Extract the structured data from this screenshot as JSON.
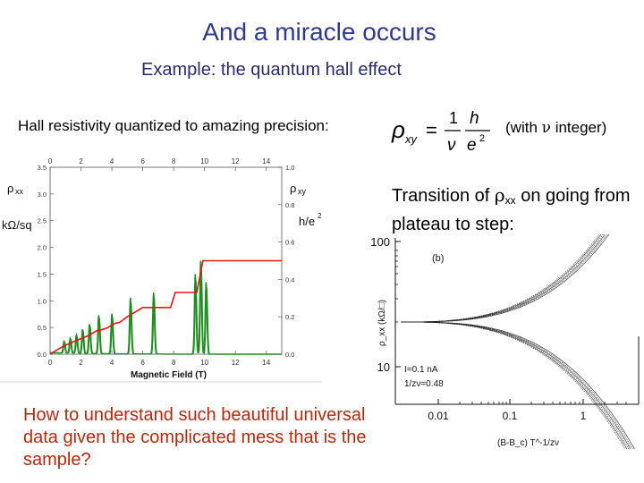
{
  "slide": {
    "title": "And a miracle occurs",
    "subtitle": "Example: the quantum hall effect",
    "hall_text": "Hall resistivity quantized to amazing precision:",
    "formula": {
      "lhs": "ρ",
      "lhs_sub": "xy",
      "equals": "=",
      "num1": "1",
      "den1": "ν",
      "num2": "h",
      "den2": "e",
      "den2_sup": "2"
    },
    "note_prefix": "(with ",
    "note_nu": "ν",
    "note_suffix": " integer)",
    "transition_prefix": "Transition of ",
    "transition_rho": "ρ",
    "transition_sub": "xx",
    "transition_suffix": " on going from plateau to step:",
    "question": "How to understand such beautiful universal data given the complicated mess that is the sample?"
  },
  "chart_data": [
    {
      "type": "line",
      "title": "",
      "xlabel": "Magnetic Field (T)",
      "x_ticks": [
        "0",
        "2",
        "4",
        "6",
        "8",
        "10",
        "12",
        "14"
      ],
      "xlim": [
        0,
        15
      ],
      "left_axis": {
        "label_top": "ρ",
        "label_top_sub": "xx",
        "label_unit": "kΩ/sq",
        "ticks": [
          "0.0",
          "0.5",
          "1.0",
          "1.5",
          "2.0",
          "2.5",
          "3.0",
          "3.5"
        ],
        "ylim": [
          0,
          3.5
        ]
      },
      "right_axis": {
        "label_top": "ρ",
        "label_top_sub": "xy",
        "label_unit": "h/e",
        "label_unit_sup": "2",
        "ticks": [
          "0.0",
          "0.2",
          "0.4",
          "0.6",
          "0.8",
          "1.0"
        ],
        "ylim": [
          0,
          1.0
        ]
      },
      "series": [
        {
          "name": "rho_xy",
          "color": "#e41414",
          "axis": "right",
          "x": [
            0,
            0.8,
            1.6,
            2.2,
            2.5,
            3.0,
            3.3,
            3.7,
            4.2,
            4.5,
            5.0,
            5.6,
            6.0,
            7.8,
            8.1,
            9.5,
            9.9,
            15.0
          ],
          "y": [
            0.0,
            0.04,
            0.07,
            0.09,
            0.1,
            0.125,
            0.13,
            0.14,
            0.165,
            0.17,
            0.2,
            0.23,
            0.25,
            0.25,
            0.33,
            0.33,
            0.5,
            0.5
          ]
        },
        {
          "name": "rho_xx",
          "color": "#1e8c1e",
          "axis": "left",
          "peaks": [
            {
              "center": 0.9,
              "height": 0.22,
              "width": 0.08
            },
            {
              "center": 1.3,
              "height": 0.28,
              "width": 0.08
            },
            {
              "center": 1.7,
              "height": 0.35,
              "width": 0.08
            },
            {
              "center": 2.1,
              "height": 0.45,
              "width": 0.08
            },
            {
              "center": 2.55,
              "height": 0.55,
              "width": 0.08
            },
            {
              "center": 3.15,
              "height": 0.72,
              "width": 0.08
            },
            {
              "center": 4.0,
              "height": 0.75,
              "width": 0.08
            },
            {
              "center": 5.2,
              "height": 1.05,
              "width": 0.08
            },
            {
              "center": 6.7,
              "height": 1.15,
              "width": 0.08
            },
            {
              "center": 9.4,
              "height": 1.5,
              "width": 0.08
            },
            {
              "center": 9.75,
              "height": 1.75,
              "width": 0.08
            },
            {
              "center": 10.1,
              "height": 1.35,
              "width": 0.08
            }
          ]
        }
      ]
    },
    {
      "type": "line",
      "panel_label": "(b)",
      "xlabel": "(B-B_c) T^-1/zν",
      "ylabel": "ρ_xx (kΩ/□)",
      "x_ticks": [
        "0.01",
        "0.1",
        "1"
      ],
      "y_ticks": [
        "10",
        "100"
      ],
      "annotations": [
        "I=0.1 nA",
        "1/zν=0.48"
      ],
      "series": [
        {
          "name": "upper branch",
          "color": "#222222"
        },
        {
          "name": "lower branch",
          "color": "#222222"
        }
      ]
    }
  ]
}
